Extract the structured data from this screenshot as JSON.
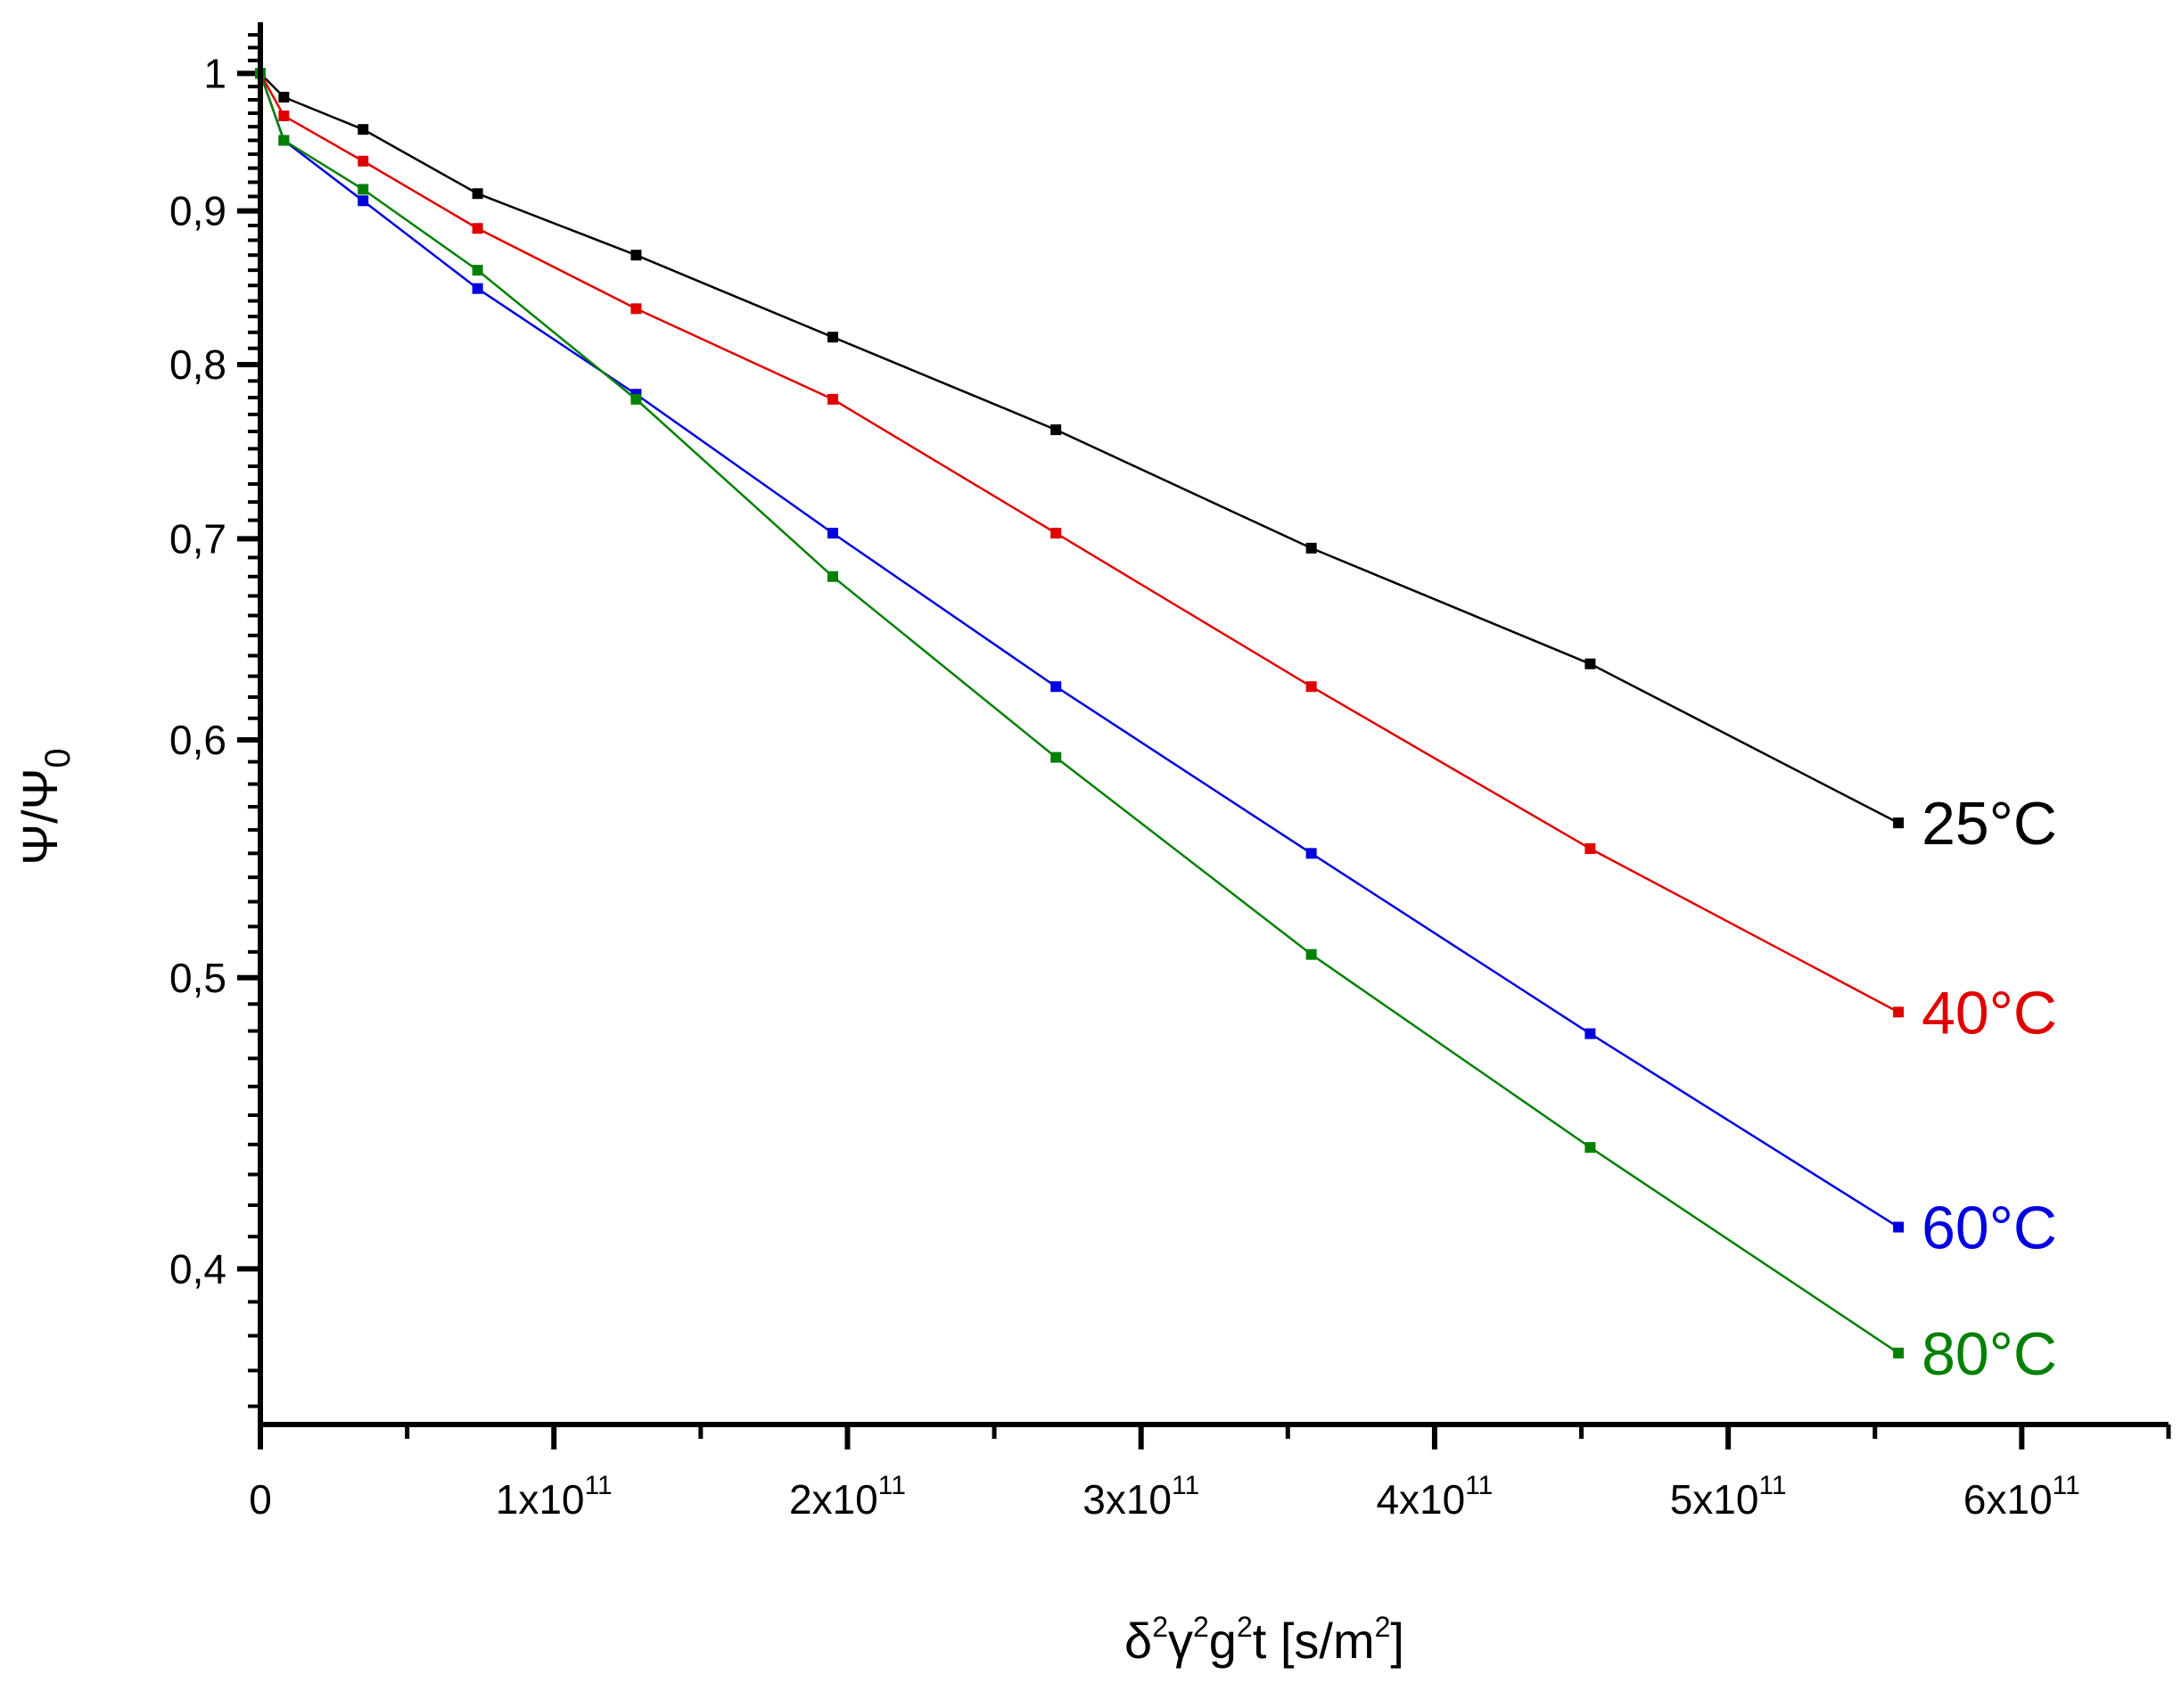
{
  "chart_data": {
    "type": "line",
    "title": "",
    "xlabel": "δ²γ²g²t [s/m²]",
    "ylabel": "Ψ/Ψ0",
    "y_scale": "log",
    "xlim": [
      0,
      650000000000.0
    ],
    "ylim": [
      0.355,
      1.04
    ],
    "x_ticks": [
      {
        "value": 0,
        "mant": "0",
        "exp": ""
      },
      {
        "value": 100000000000.0,
        "mant": "1x10",
        "exp": "11"
      },
      {
        "value": 200000000000.0,
        "mant": "2x10",
        "exp": "11"
      },
      {
        "value": 300000000000.0,
        "mant": "3x10",
        "exp": "11"
      },
      {
        "value": 400000000000.0,
        "mant": "4x10",
        "exp": "11"
      },
      {
        "value": 500000000000.0,
        "mant": "5x10",
        "exp": "11"
      },
      {
        "value": 600000000000.0,
        "mant": "6x10",
        "exp": "11"
      }
    ],
    "y_ticks": [
      {
        "value": 1.0,
        "label": "1"
      },
      {
        "value": 0.9,
        "label": "0,9"
      },
      {
        "value": 0.8,
        "label": "0,8"
      },
      {
        "value": 0.7,
        "label": "0,7"
      },
      {
        "value": 0.6,
        "label": "0,6"
      },
      {
        "value": 0.5,
        "label": "0,5"
      },
      {
        "value": 0.4,
        "label": "0,4"
      }
    ],
    "x": [
      0,
      8000000000.0,
      35000000000.0,
      74000000000.0,
      128000000000.0,
      195000000000.0,
      271000000000.0,
      358000000000.0,
      453000000000.0,
      558000000000.0
    ],
    "series": [
      {
        "name": "25°C",
        "color": "#000000",
        "values": [
          1.0,
          0.982,
          0.958,
          0.912,
          0.87,
          0.817,
          0.761,
          0.695,
          0.636,
          0.563
        ]
      },
      {
        "name": "40°C",
        "color": "#e00000",
        "values": [
          1.0,
          0.968,
          0.935,
          0.888,
          0.835,
          0.779,
          0.703,
          0.625,
          0.552,
          0.487
        ]
      },
      {
        "name": "60°C",
        "color": "#0000e0",
        "values": [
          1.0,
          0.95,
          0.907,
          0.848,
          0.782,
          0.703,
          0.625,
          0.55,
          0.479,
          0.413
        ]
      },
      {
        "name": "80°C",
        "color": "#008000",
        "values": [
          1.0,
          0.95,
          0.915,
          0.86,
          0.779,
          0.68,
          0.592,
          0.509,
          0.439,
          0.375
        ]
      }
    ]
  }
}
